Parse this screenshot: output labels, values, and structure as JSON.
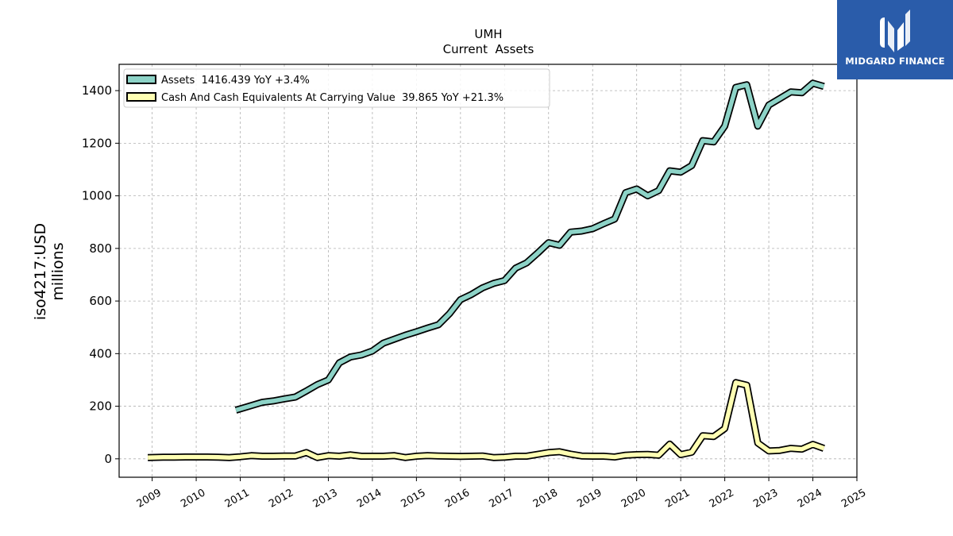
{
  "chart_data": {
    "type": "line",
    "title": "UMH",
    "subtitle": "Current  Assets",
    "ylabel": "iso4217:USD\nmillions",
    "xlim": [
      2008.25,
      2025.0
    ],
    "ylim": [
      -70,
      1500
    ],
    "x_ticks": [
      "2009",
      "2010",
      "2011",
      "2012",
      "2013",
      "2014",
      "2015",
      "2016",
      "2017",
      "2018",
      "2019",
      "2020",
      "2021",
      "2022",
      "2023",
      "2024",
      "2025"
    ],
    "y_ticks": [
      0,
      200,
      400,
      600,
      800,
      1000,
      1200,
      1400
    ],
    "grid": true,
    "legend_position": "top-left",
    "series": [
      {
        "name": "Assets  1416.439 YoY +3.4%",
        "color": "#8dd3c7",
        "x": [
          2010.9,
          2011.2,
          2011.5,
          2011.75,
          2012.0,
          2012.25,
          2012.5,
          2012.75,
          2013.0,
          2013.25,
          2013.5,
          2013.75,
          2014.0,
          2014.25,
          2014.5,
          2014.75,
          2015.0,
          2015.25,
          2015.5,
          2015.75,
          2016.0,
          2016.25,
          2016.5,
          2016.75,
          2017.0,
          2017.25,
          2017.5,
          2017.75,
          2018.0,
          2018.25,
          2018.5,
          2018.75,
          2019.0,
          2019.25,
          2019.5,
          2019.75,
          2020.0,
          2020.25,
          2020.5,
          2020.75,
          2021.0,
          2021.25,
          2021.5,
          2021.75,
          2022.0,
          2022.25,
          2022.5,
          2022.75,
          2023.0,
          2023.25,
          2023.5,
          2023.75,
          2024.0,
          2024.25
        ],
        "y": [
          185,
          200,
          215,
          220,
          228,
          235,
          258,
          282,
          300,
          365,
          387,
          395,
          410,
          440,
          455,
          470,
          483,
          497,
          510,
          552,
          605,
          625,
          650,
          667,
          678,
          725,
          745,
          782,
          822,
          812,
          862,
          866,
          875,
          894,
          912,
          1012,
          1026,
          1000,
          1020,
          1095,
          1090,
          1115,
          1210,
          1205,
          1265,
          1412,
          1422,
          1265,
          1345,
          1370,
          1395,
          1392,
          1428,
          1416
        ]
      },
      {
        "name": "Cash And Cash Equivalents At Carrying Value  39.865 YoY +21.3%",
        "color": "#ffffb3",
        "x": [
          2008.9,
          2009.25,
          2009.5,
          2009.75,
          2010.0,
          2010.25,
          2010.5,
          2010.75,
          2011.0,
          2011.25,
          2011.5,
          2011.75,
          2012.0,
          2012.25,
          2012.5,
          2012.75,
          2013.0,
          2013.25,
          2013.5,
          2013.75,
          2014.0,
          2014.25,
          2014.5,
          2014.75,
          2015.0,
          2015.25,
          2015.5,
          2015.75,
          2016.0,
          2016.25,
          2016.5,
          2016.75,
          2017.0,
          2017.25,
          2017.5,
          2017.75,
          2018.0,
          2018.25,
          2018.5,
          2018.75,
          2019.0,
          2019.25,
          2019.5,
          2019.75,
          2020.0,
          2020.25,
          2020.5,
          2020.75,
          2021.0,
          2021.25,
          2021.5,
          2021.75,
          2022.0,
          2022.25,
          2022.5,
          2022.75,
          2023.0,
          2023.25,
          2023.5,
          2023.75,
          2024.0,
          2024.25
        ],
        "y": [
          5,
          6,
          6,
          7,
          7,
          7,
          6,
          5,
          8,
          12,
          10,
          10,
          11,
          11,
          24,
          5,
          12,
          10,
          15,
          10,
          10,
          10,
          12,
          5,
          10,
          12,
          11,
          10,
          9,
          10,
          11,
          5,
          6,
          10,
          10,
          17,
          24,
          27,
          18,
          11,
          10,
          10,
          7,
          14,
          16,
          17,
          14,
          56,
          16,
          25,
          88,
          85,
          115,
          290,
          280,
          60,
          30,
          32,
          40,
          37,
          55,
          39.865
        ]
      }
    ]
  }
}
